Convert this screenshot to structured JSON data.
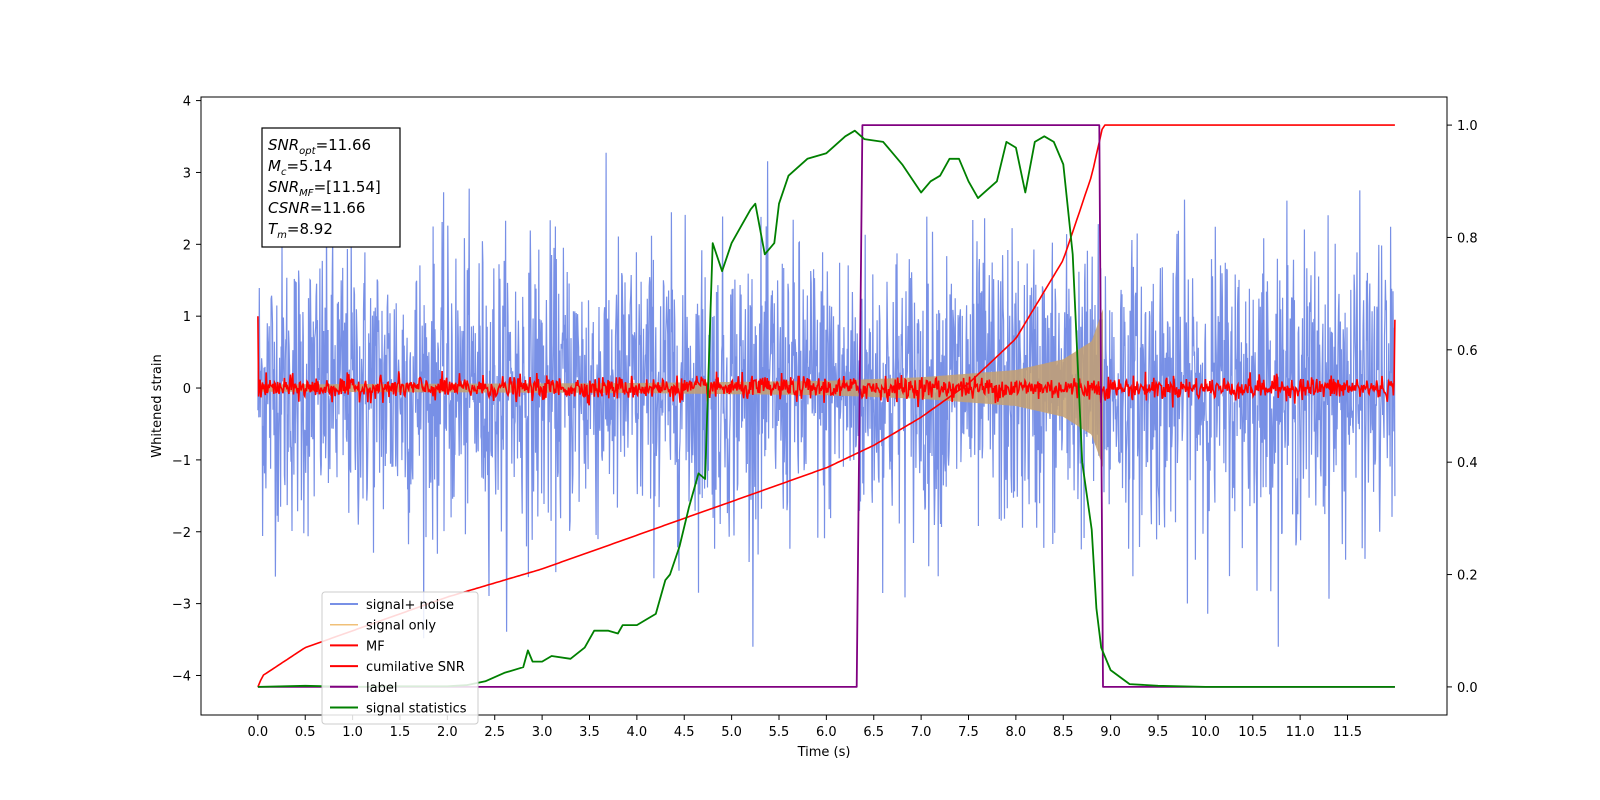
{
  "chart_data": {
    "type": "line",
    "xlabel": "Time (s)",
    "ylabel": "Whitened strain",
    "xlim": [
      -0.6,
      12.55
    ],
    "ylim": [
      -4.55,
      4.05
    ],
    "y2lim": [
      -0.05,
      1.05
    ],
    "x_ticks": [
      "0.0",
      "0.5",
      "1.0",
      "1.5",
      "2.0",
      "2.5",
      "3.0",
      "3.5",
      "4.0",
      "4.5",
      "5.0",
      "5.5",
      "6.0",
      "6.5",
      "7.0",
      "7.5",
      "8.0",
      "8.5",
      "9.0",
      "9.5",
      "10.0",
      "10.5",
      "11.0",
      "11.5"
    ],
    "y_ticks": [
      "4",
      "3",
      "2",
      "1",
      "0",
      "−1",
      "−2",
      "−3",
      "−4"
    ],
    "y2_ticks": [
      "1.0",
      "0.8",
      "0.6",
      "0.4",
      "0.2",
      "0.0"
    ],
    "legend_position": "lower-left",
    "info_box": [
      {
        "main": "SNR",
        "sub": "opt",
        "rest": "=11.66"
      },
      {
        "main": "M",
        "sub": "c",
        "rest": "=5.14"
      },
      {
        "main": "SNR",
        "sub": "MF",
        "rest": "=[11.54]"
      },
      {
        "main": "CSNR",
        "sub": "",
        "rest": "=11.66"
      },
      {
        "main": "T",
        "sub": "m",
        "rest": "=8.92"
      }
    ],
    "series": [
      {
        "name": "signal+ noise",
        "color": "#7890e6",
        "axis": "left",
        "kind": "noise",
        "x_range": [
          0,
          12
        ],
        "amplitude_typical": 1.0,
        "amplitude_max": 3.6
      },
      {
        "name": "signal only",
        "color": "#f0c078",
        "axis": "left",
        "kind": "chirp",
        "x_range": [
          0,
          8.92
        ],
        "envelope": [
          [
            0.0,
            0.05
          ],
          [
            4.0,
            0.07
          ],
          [
            6.0,
            0.1
          ],
          [
            7.0,
            0.15
          ],
          [
            8.0,
            0.25
          ],
          [
            8.5,
            0.4
          ],
          [
            8.8,
            0.65
          ],
          [
            8.92,
            1.1
          ]
        ]
      },
      {
        "name": "MF",
        "color": "#ff0000",
        "axis": "left",
        "kind": "noise",
        "x_range": [
          0,
          12
        ],
        "amplitude_typical": 0.08,
        "start_value": 1.0,
        "end_value": 0.95
      },
      {
        "name": "cumilative SNR",
        "color": "#ff0000",
        "axis": "right",
        "points": [
          [
            0.0,
            0.0
          ],
          [
            0.05,
            0.02
          ],
          [
            0.5,
            0.07
          ],
          [
            1.0,
            0.1
          ],
          [
            2.0,
            0.16
          ],
          [
            3.0,
            0.21
          ],
          [
            4.0,
            0.27
          ],
          [
            5.0,
            0.33
          ],
          [
            6.0,
            0.39
          ],
          [
            6.5,
            0.43
          ],
          [
            7.0,
            0.48
          ],
          [
            7.5,
            0.54
          ],
          [
            8.0,
            0.62
          ],
          [
            8.5,
            0.76
          ],
          [
            8.8,
            0.91
          ],
          [
            8.92,
            1.0
          ],
          [
            12.0,
            1.0
          ]
        ]
      },
      {
        "name": "label",
        "color": "#800080",
        "axis": "right",
        "points": [
          [
            0.0,
            0.0
          ],
          [
            6.32,
            0.0
          ],
          [
            6.38,
            1.0
          ],
          [
            8.88,
            1.0
          ],
          [
            8.92,
            0.0
          ],
          [
            12.0,
            0.0
          ]
        ]
      },
      {
        "name": "signal statistics",
        "color": "#008000",
        "axis": "right",
        "points": [
          [
            0.0,
            0.0
          ],
          [
            0.5,
            0.002
          ],
          [
            1.0,
            0.0
          ],
          [
            1.5,
            0.001
          ],
          [
            2.0,
            0.001
          ],
          [
            2.2,
            0.003
          ],
          [
            2.4,
            0.01
          ],
          [
            2.6,
            0.025
          ],
          [
            2.8,
            0.035
          ],
          [
            2.85,
            0.065
          ],
          [
            2.9,
            0.045
          ],
          [
            3.0,
            0.045
          ],
          [
            3.1,
            0.055
          ],
          [
            3.3,
            0.05
          ],
          [
            3.45,
            0.07
          ],
          [
            3.55,
            0.1
          ],
          [
            3.7,
            0.1
          ],
          [
            3.8,
            0.095
          ],
          [
            3.85,
            0.11
          ],
          [
            4.0,
            0.11
          ],
          [
            4.1,
            0.12
          ],
          [
            4.2,
            0.13
          ],
          [
            4.3,
            0.19
          ],
          [
            4.35,
            0.2
          ],
          [
            4.45,
            0.25
          ],
          [
            4.55,
            0.32
          ],
          [
            4.65,
            0.38
          ],
          [
            4.72,
            0.37
          ],
          [
            4.8,
            0.79
          ],
          [
            4.9,
            0.74
          ],
          [
            5.0,
            0.79
          ],
          [
            5.1,
            0.82
          ],
          [
            5.2,
            0.85
          ],
          [
            5.25,
            0.86
          ],
          [
            5.35,
            0.77
          ],
          [
            5.45,
            0.79
          ],
          [
            5.5,
            0.86
          ],
          [
            5.6,
            0.91
          ],
          [
            5.8,
            0.94
          ],
          [
            6.0,
            0.95
          ],
          [
            6.2,
            0.98
          ],
          [
            6.3,
            0.99
          ],
          [
            6.4,
            0.975
          ],
          [
            6.6,
            0.97
          ],
          [
            6.8,
            0.93
          ],
          [
            7.0,
            0.88
          ],
          [
            7.1,
            0.9
          ],
          [
            7.2,
            0.91
          ],
          [
            7.3,
            0.94
          ],
          [
            7.4,
            0.94
          ],
          [
            7.5,
            0.9
          ],
          [
            7.6,
            0.87
          ],
          [
            7.7,
            0.885
          ],
          [
            7.8,
            0.9
          ],
          [
            7.9,
            0.97
          ],
          [
            8.0,
            0.96
          ],
          [
            8.1,
            0.88
          ],
          [
            8.2,
            0.97
          ],
          [
            8.3,
            0.98
          ],
          [
            8.4,
            0.97
          ],
          [
            8.5,
            0.93
          ],
          [
            8.6,
            0.77
          ],
          [
            8.7,
            0.4
          ],
          [
            8.8,
            0.28
          ],
          [
            8.85,
            0.14
          ],
          [
            8.9,
            0.07
          ],
          [
            9.0,
            0.03
          ],
          [
            9.2,
            0.005
          ],
          [
            9.5,
            0.002
          ],
          [
            10.0,
            0.0
          ],
          [
            12.0,
            0.0
          ]
        ]
      }
    ]
  }
}
